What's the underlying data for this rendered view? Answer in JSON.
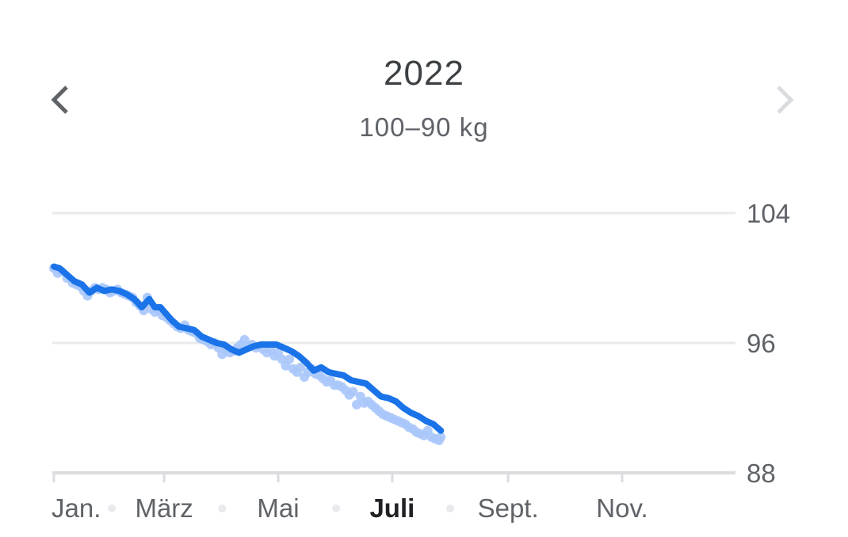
{
  "header": {
    "title": "2022",
    "subtitle": "100–90 kg"
  },
  "nav": {
    "prev_icon": "chevron-left-icon",
    "next_icon": "chevron-right-icon",
    "next_enabled": false
  },
  "colors": {
    "line": "#1a73e8",
    "points": "#a8c7fa",
    "grid": "#e8eaed",
    "axis": "#dadce0",
    "tick_text": "#5f6368",
    "selected_month": "#202124"
  },
  "chart_data": {
    "type": "line",
    "title": "",
    "xlabel": "",
    "ylabel": "",
    "ylim": [
      88,
      104
    ],
    "yticks": [
      104,
      96,
      88
    ],
    "xlim": [
      1,
      366
    ],
    "x_unit": "day of year 2022",
    "month_labels": [
      {
        "label": "Jan.",
        "day": 1
      },
      {
        "label": "März",
        "day": 60
      },
      {
        "label": "Mai",
        "day": 121
      },
      {
        "label": "Juli",
        "day": 182,
        "selected": true
      },
      {
        "label": "Sept.",
        "day": 244
      },
      {
        "label": "Nov.",
        "day": 305
      }
    ],
    "minor_month_days": [
      32,
      91,
      152,
      213
    ],
    "grid": true,
    "series": [
      {
        "kind": "trend",
        "x": [
          1,
          4,
          8,
          12,
          16,
          20,
          24,
          28,
          32,
          36,
          40,
          44,
          48,
          52,
          55,
          58,
          61,
          64,
          68,
          72,
          76,
          80,
          84,
          88,
          92,
          96,
          100,
          104,
          108,
          112,
          116,
          120,
          124,
          128,
          132,
          136,
          140,
          144,
          148,
          152,
          156,
          160,
          164,
          168,
          172,
          176,
          180,
          184,
          188,
          192,
          196,
          200,
          204,
          208
        ],
        "values": [
          100.7,
          100.6,
          100.2,
          99.8,
          99.6,
          99.1,
          99.4,
          99.2,
          99.3,
          99.2,
          99.0,
          98.7,
          98.2,
          98.7,
          98.2,
          98.2,
          97.8,
          97.4,
          97.0,
          96.9,
          96.8,
          96.4,
          96.2,
          96.0,
          95.9,
          95.6,
          95.4,
          95.6,
          95.8,
          95.9,
          95.9,
          95.9,
          95.7,
          95.5,
          95.2,
          94.8,
          94.3,
          94.5,
          94.2,
          94.1,
          94.0,
          93.7,
          93.6,
          93.5,
          93.1,
          92.7,
          92.6,
          92.4,
          92.0,
          91.7,
          91.5,
          91.2,
          91.0,
          90.6
        ]
      },
      {
        "kind": "measurements",
        "x": [
          1,
          3,
          5,
          8,
          11,
          13,
          15,
          17,
          19,
          21,
          23,
          25,
          27,
          29,
          31,
          33,
          35,
          37,
          39,
          41,
          43,
          45,
          47,
          49,
          51,
          53,
          55,
          57,
          59,
          61,
          63,
          65,
          67,
          69,
          71,
          73,
          75,
          77,
          79,
          81,
          83,
          85,
          87,
          89,
          91,
          93,
          95,
          97,
          99,
          101,
          103,
          105,
          107,
          109,
          111,
          113,
          115,
          117,
          119,
          121,
          123,
          125,
          127,
          129,
          131,
          133,
          135,
          137,
          139,
          141,
          143,
          145,
          147,
          149,
          151,
          153,
          155,
          157,
          159,
          161,
          163,
          165,
          167,
          169,
          171,
          173,
          175,
          177,
          179,
          181,
          183,
          185,
          187,
          189,
          191,
          193,
          195,
          197,
          199,
          201,
          203,
          205,
          207,
          208
        ],
        "values": [
          100.6,
          100.3,
          100.4,
          100.0,
          99.7,
          99.6,
          99.5,
          99.2,
          98.9,
          99.2,
          99.4,
          99.3,
          99.4,
          99.3,
          99.1,
          99.2,
          99.3,
          99.1,
          99.0,
          98.9,
          98.8,
          98.5,
          98.3,
          98.0,
          98.8,
          98.1,
          97.9,
          98.0,
          97.7,
          97.6,
          97.4,
          97.2,
          97.0,
          96.9,
          97.1,
          96.8,
          96.7,
          96.6,
          96.3,
          96.2,
          96.1,
          95.9,
          96.0,
          95.7,
          95.3,
          95.6,
          95.4,
          95.5,
          95.7,
          95.9,
          96.2,
          95.8,
          95.9,
          95.7,
          95.8,
          95.6,
          95.4,
          95.6,
          95.2,
          95.4,
          95.0,
          94.6,
          95.0,
          94.4,
          94.2,
          94.5,
          93.9,
          94.2,
          94.4,
          94.1,
          94.0,
          93.8,
          93.6,
          93.7,
          93.4,
          93.4,
          93.3,
          93.1,
          92.8,
          93.0,
          92.2,
          92.7,
          92.3,
          92.4,
          92.2,
          92.0,
          91.8,
          91.6,
          91.5,
          91.4,
          91.3,
          91.2,
          91.1,
          91.0,
          90.8,
          90.7,
          90.5,
          90.4,
          90.3,
          90.6,
          90.2,
          90.1,
          90.0,
          90.2
        ]
      }
    ]
  }
}
